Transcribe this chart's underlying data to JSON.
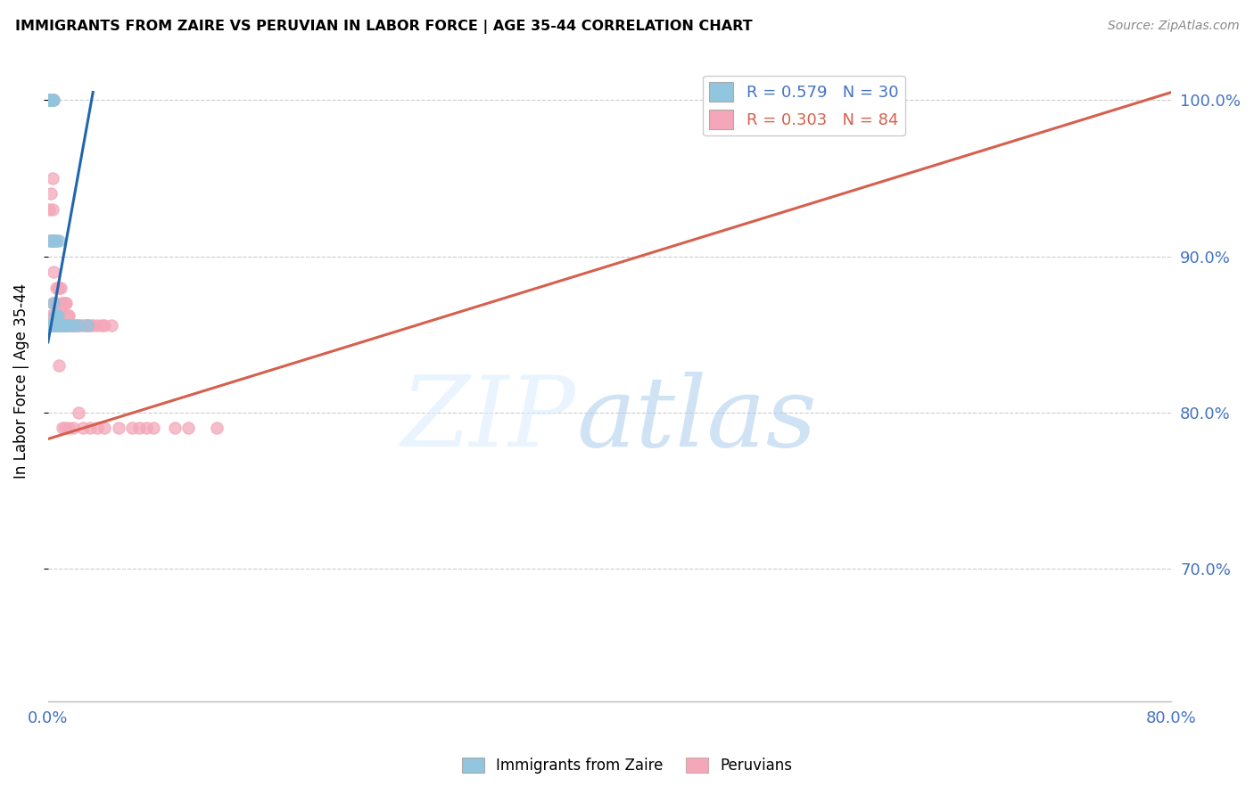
{
  "title": "IMMIGRANTS FROM ZAIRE VS PERUVIAN IN LABOR FORCE | AGE 35-44 CORRELATION CHART",
  "source": "Source: ZipAtlas.com",
  "ylabel": "In Labor Force | Age 35-44",
  "legend_label_blue": "Immigrants from Zaire",
  "legend_label_pink": "Peruvians",
  "R_blue": 0.579,
  "N_blue": 30,
  "R_pink": 0.303,
  "N_pink": 84,
  "color_blue": "#92c5de",
  "color_pink": "#f4a7b9",
  "line_color_blue": "#2166ac",
  "line_color_pink": "#d6604d",
  "axis_color": "#4472c4",
  "xmin": 0.0,
  "xmax": 0.8,
  "ymin": 0.615,
  "ymax": 1.025,
  "yticks": [
    0.7,
    0.8,
    0.9,
    1.0
  ],
  "ytick_labels": [
    "70.0%",
    "80.0%",
    "90.0%",
    "100.0%"
  ],
  "blue_x": [
    0.0,
    0.001,
    0.001,
    0.002,
    0.002,
    0.002,
    0.003,
    0.003,
    0.004,
    0.004,
    0.004,
    0.004,
    0.005,
    0.005,
    0.005,
    0.006,
    0.006,
    0.006,
    0.007,
    0.007,
    0.008,
    0.008,
    0.009,
    0.01,
    0.01,
    0.012,
    0.014,
    0.018,
    0.022,
    0.028
  ],
  "blue_y": [
    0.856,
    1.0,
    1.0,
    1.0,
    0.91,
    0.856,
    0.91,
    1.0,
    0.856,
    0.87,
    0.91,
    1.0,
    0.856,
    0.862,
    0.91,
    0.856,
    0.862,
    0.856,
    0.856,
    0.862,
    0.856,
    0.91,
    0.856,
    0.856,
    0.856,
    0.856,
    0.856,
    0.856,
    0.856,
    0.856
  ],
  "pink_x": [
    0.0,
    0.001,
    0.001,
    0.001,
    0.002,
    0.002,
    0.002,
    0.002,
    0.003,
    0.003,
    0.003,
    0.003,
    0.003,
    0.004,
    0.004,
    0.004,
    0.004,
    0.005,
    0.005,
    0.005,
    0.006,
    0.006,
    0.006,
    0.006,
    0.007,
    0.007,
    0.007,
    0.008,
    0.008,
    0.008,
    0.009,
    0.009,
    0.009,
    0.01,
    0.01,
    0.011,
    0.011,
    0.012,
    0.012,
    0.013,
    0.013,
    0.014,
    0.014,
    0.015,
    0.015,
    0.016,
    0.017,
    0.018,
    0.019,
    0.02,
    0.022,
    0.024,
    0.026,
    0.028,
    0.03,
    0.032,
    0.035,
    0.038,
    0.04,
    0.045,
    0.001,
    0.002,
    0.003,
    0.004,
    0.005,
    0.006,
    0.008,
    0.01,
    0.012,
    0.015,
    0.018,
    0.022,
    0.025,
    0.03,
    0.035,
    0.04,
    0.05,
    0.06,
    0.065,
    0.07,
    0.075,
    0.09,
    0.1,
    0.12
  ],
  "pink_y": [
    0.856,
    0.856,
    0.91,
    1.0,
    0.856,
    0.862,
    0.91,
    1.0,
    0.856,
    0.87,
    0.91,
    0.95,
    1.0,
    0.856,
    0.862,
    0.91,
    1.0,
    0.856,
    0.87,
    0.91,
    0.856,
    0.862,
    0.88,
    0.91,
    0.856,
    0.862,
    0.88,
    0.856,
    0.865,
    0.88,
    0.856,
    0.865,
    0.88,
    0.856,
    0.87,
    0.856,
    0.87,
    0.856,
    0.87,
    0.856,
    0.87,
    0.856,
    0.862,
    0.856,
    0.862,
    0.856,
    0.856,
    0.856,
    0.856,
    0.856,
    0.856,
    0.856,
    0.856,
    0.856,
    0.856,
    0.856,
    0.856,
    0.856,
    0.856,
    0.856,
    0.93,
    0.94,
    0.93,
    0.89,
    0.86,
    0.87,
    0.83,
    0.79,
    0.79,
    0.79,
    0.79,
    0.8,
    0.79,
    0.79,
    0.79,
    0.79,
    0.79,
    0.79,
    0.79,
    0.79,
    0.79,
    0.79,
    0.79,
    0.79
  ],
  "blue_line_x0": 0.0,
  "blue_line_x1": 0.032,
  "blue_line_y0": 0.845,
  "blue_line_y1": 1.005,
  "pink_line_x0": 0.0,
  "pink_line_x1": 0.8,
  "pink_line_y0": 0.783,
  "pink_line_y1": 1.005
}
